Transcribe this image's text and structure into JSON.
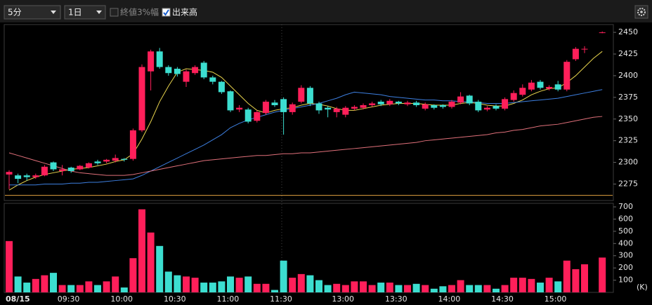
{
  "toolbar": {
    "interval": "5分",
    "range": "1日",
    "checkbox_close_range": {
      "label": "終値3%幅",
      "checked": false
    },
    "checkbox_volume": {
      "label": "出来高",
      "checked": true
    }
  },
  "chart_data": [
    {
      "type": "candlestick",
      "categories": [
        "08/15",
        null,
        null,
        null,
        null,
        null,
        "09:30",
        null,
        null,
        null,
        null,
        null,
        "10:00",
        null,
        null,
        null,
        null,
        null,
        "10:30",
        null,
        null,
        null,
        null,
        null,
        "11:00",
        null,
        null,
        null,
        null,
        null,
        "11:30",
        null,
        null,
        null,
        null,
        null,
        null,
        "13:00",
        null,
        null,
        null,
        null,
        null,
        "13:30",
        null,
        null,
        null,
        null,
        null,
        "14:00",
        null,
        null,
        null,
        null,
        null,
        "14:30",
        null,
        null,
        null,
        null,
        null,
        "15:00",
        null,
        null,
        null,
        null,
        null,
        null
      ],
      "open": [
        2286,
        2285,
        2285,
        2283,
        2285,
        2300,
        2290,
        2294,
        2292,
        2294,
        2301,
        2301,
        2302,
        2304,
        2304,
        2337,
        2405,
        2428,
        2410,
        2408,
        2393,
        2403,
        2415,
        2398,
        2393,
        2382,
        2361,
        2361,
        2348,
        2357,
        2369,
        2373,
        2358,
        2370,
        2386,
        2368,
        2363,
        2358,
        2355,
        2362,
        2363,
        2366,
        2370,
        2367,
        2370,
        2367,
        2369,
        2362,
        2366,
        2366,
        2364,
        2369,
        2377,
        2370,
        2361,
        2365,
        2362,
        2372,
        2378,
        2384,
        2393,
        2385,
        2390,
        2384,
        2419,
        2431,
        null,
        2450
      ],
      "high": [
        2291,
        2287,
        2287,
        2287,
        2297,
        2301,
        2297,
        2295,
        2297,
        2300,
        2303,
        2304,
        2309,
        2305,
        2339,
        2413,
        2430,
        2432,
        2412,
        2410,
        2407,
        2412,
        2417,
        2400,
        2394,
        2383,
        2366,
        2363,
        2360,
        2372,
        2372,
        2375,
        2369,
        2389,
        2388,
        2370,
        2365,
        2364,
        2365,
        2366,
        2368,
        2370,
        2372,
        2373,
        2371,
        2371,
        2371,
        2369,
        2367,
        2367,
        2372,
        2381,
        2378,
        2372,
        2365,
        2367,
        2375,
        2383,
        2390,
        2395,
        2395,
        2389,
        2394,
        2418,
        2433,
        2434,
        null,
        2451
      ],
      "low": [
        2269,
        2276,
        2279,
        2281,
        2284,
        2290,
        2285,
        2288,
        2291,
        2293,
        2297,
        2299,
        2300,
        2301,
        2302,
        2335,
        2383,
        2408,
        2400,
        2399,
        2387,
        2401,
        2396,
        2390,
        2379,
        2358,
        2358,
        2345,
        2346,
        2355,
        2364,
        2332,
        2355,
        2368,
        2365,
        2356,
        2352,
        2352,
        2352,
        2360,
        2361,
        2364,
        2365,
        2365,
        2366,
        2365,
        2364,
        2360,
        2361,
        2362,
        2362,
        2367,
        2366,
        2358,
        2359,
        2360,
        2360,
        2370,
        2376,
        2382,
        2384,
        2383,
        2382,
        2382,
        2417,
        2426,
        null,
        2449
      ],
      "close": [
        2289,
        2281,
        2283,
        2285,
        2295,
        2292,
        2292,
        2290,
        2296,
        2299,
        2299,
        2303,
        2305,
        2303,
        2337,
        2410,
        2428,
        2410,
        2403,
        2402,
        2405,
        2410,
        2398,
        2393,
        2381,
        2360,
        2363,
        2347,
        2358,
        2370,
        2366,
        2358,
        2367,
        2386,
        2368,
        2360,
        2361,
        2362,
        2363,
        2364,
        2366,
        2368,
        2367,
        2371,
        2368,
        2369,
        2366,
        2367,
        2363,
        2364,
        2370,
        2376,
        2368,
        2360,
        2363,
        2362,
        2373,
        2380,
        2386,
        2392,
        2386,
        2387,
        2384,
        2416,
        2431,
        2431,
        null,
        2450
      ],
      "up_color": "#ff1f5a",
      "down_color": "#3cded0",
      "series": [
        {
          "color": "#e8d44d",
          "values": [
            2268,
            2274,
            2279,
            2283,
            2286,
            2288,
            2290,
            2292,
            2293,
            2294,
            2296,
            2298,
            2301,
            2303,
            2310,
            2327,
            2347,
            2370,
            2388,
            2404,
            2408,
            2407,
            2406,
            2404,
            2398,
            2388,
            2378,
            2368,
            2360,
            2357,
            2360,
            2362,
            2363,
            2366,
            2368,
            2367,
            2365,
            2362,
            2360,
            2360,
            2362,
            2364,
            2366,
            2367,
            2368,
            2368,
            2368,
            2367,
            2366,
            2366,
            2366,
            2368,
            2369,
            2368,
            2366,
            2365,
            2365,
            2368,
            2372,
            2378,
            2382,
            2385,
            2386,
            2392,
            2400,
            2410,
            2420,
            2428
          ]
        },
        {
          "color": "#3d7fe0",
          "values": [
            2274,
            2274,
            2274,
            2274,
            2275,
            2275,
            2275,
            2276,
            2276,
            2277,
            2277,
            2278,
            2279,
            2280,
            2281,
            2285,
            2290,
            2295,
            2300,
            2305,
            2310,
            2315,
            2320,
            2326,
            2332,
            2340,
            2345,
            2349,
            2352,
            2355,
            2358,
            2360,
            2362,
            2364,
            2366,
            2368,
            2371,
            2374,
            2378,
            2381,
            2380,
            2379,
            2378,
            2376,
            2375,
            2374,
            2373,
            2372,
            2372,
            2371,
            2371,
            2370,
            2370,
            2369,
            2368,
            2368,
            2368,
            2369,
            2370,
            2371,
            2372,
            2373,
            2374,
            2376,
            2378,
            2380,
            2382,
            2384
          ]
        },
        {
          "color": "#e0707a",
          "values": [
            2311,
            2308,
            2305,
            2302,
            2299,
            2296,
            2293,
            2290,
            2288,
            2287,
            2286,
            2285,
            2285,
            2285,
            2286,
            2288,
            2290,
            2292,
            2294,
            2296,
            2298,
            2300,
            2302,
            2303,
            2304,
            2305,
            2306,
            2307,
            2308,
            2308,
            2309,
            2310,
            2310,
            2311,
            2311,
            2312,
            2313,
            2314,
            2315,
            2316,
            2317,
            2318,
            2319,
            2320,
            2321,
            2322,
            2323,
            2325,
            2326,
            2327,
            2328,
            2329,
            2330,
            2331,
            2332,
            2334,
            2335,
            2337,
            2338,
            2340,
            2342,
            2343,
            2344,
            2346,
            2348,
            2350,
            2352,
            2353
          ]
        }
      ],
      "reference_line": 2262,
      "reference_color": "#e0a040",
      "ylim": [
        2256,
        2459
      ],
      "yticks": [
        2275,
        2300,
        2325,
        2350,
        2375,
        2400,
        2425,
        2450
      ]
    },
    {
      "type": "bar",
      "values": [
        420,
        130,
        80,
        110,
        140,
        160,
        60,
        60,
        60,
        90,
        60,
        90,
        130,
        40,
        280,
        680,
        490,
        380,
        170,
        140,
        130,
        120,
        80,
        80,
        90,
        130,
        120,
        130,
        70,
        70,
        20,
        260,
        120,
        150,
        140,
        100,
        60,
        70,
        60,
        90,
        90,
        60,
        80,
        80,
        60,
        60,
        70,
        60,
        30,
        50,
        60,
        100,
        60,
        60,
        60,
        30,
        60,
        120,
        120,
        110,
        80,
        120,
        90,
        260,
        190,
        230,
        null,
        285
      ],
      "unit_label": "(K)",
      "ylim": [
        0,
        729
      ],
      "yticks": [
        100,
        200,
        300,
        400,
        500,
        600,
        700
      ]
    }
  ]
}
